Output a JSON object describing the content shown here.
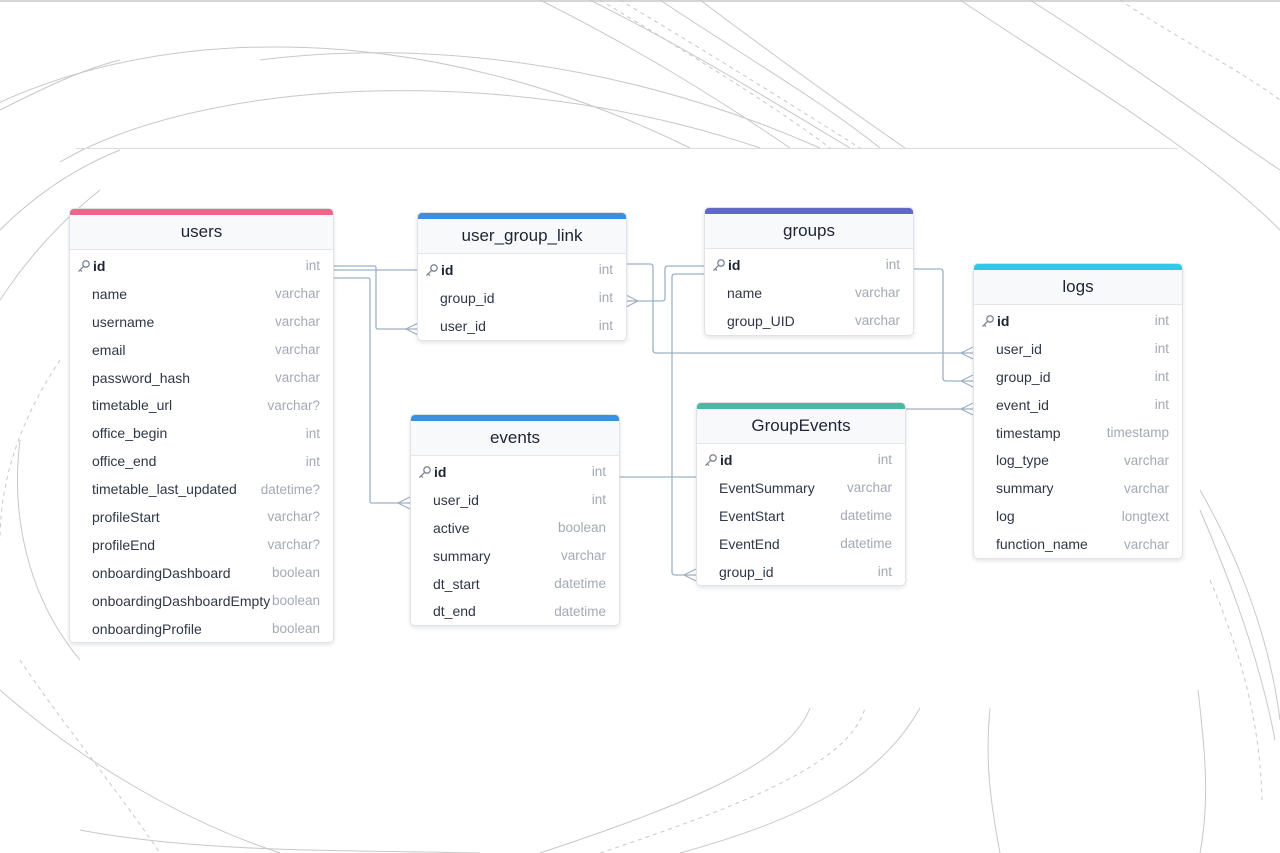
{
  "diagram": {
    "tables": [
      {
        "id": "users",
        "name": "users",
        "accent": "#f0648a",
        "columns": [
          {
            "name": "id",
            "type": "int",
            "pk": true
          },
          {
            "name": "name",
            "type": "varchar"
          },
          {
            "name": "username",
            "type": "varchar"
          },
          {
            "name": "email",
            "type": "varchar"
          },
          {
            "name": "password_hash",
            "type": "varchar"
          },
          {
            "name": "timetable_url",
            "type": "varchar?"
          },
          {
            "name": "office_begin",
            "type": "int"
          },
          {
            "name": "office_end",
            "type": "int"
          },
          {
            "name": "timetable_last_updated",
            "type": "datetime?"
          },
          {
            "name": "profileStart",
            "type": "varchar?"
          },
          {
            "name": "profileEnd",
            "type": "varchar?"
          },
          {
            "name": "onboardingDashboard",
            "type": "boolean"
          },
          {
            "name": "onboardingDashboardEmpty",
            "type": "boolean"
          },
          {
            "name": "onboardingProfile",
            "type": "boolean"
          }
        ]
      },
      {
        "id": "user_group_link",
        "name": "user_group_link",
        "accent": "#3a8fde",
        "columns": [
          {
            "name": "id",
            "type": "int",
            "pk": true
          },
          {
            "name": "group_id",
            "type": "int"
          },
          {
            "name": "user_id",
            "type": "int"
          }
        ]
      },
      {
        "id": "groups",
        "name": "groups",
        "accent": "#6168c9",
        "columns": [
          {
            "name": "id",
            "type": "int",
            "pk": true
          },
          {
            "name": "name",
            "type": "varchar"
          },
          {
            "name": "group_UID",
            "type": "varchar"
          }
        ]
      },
      {
        "id": "logs",
        "name": "logs",
        "accent": "#2ec9e3",
        "columns": [
          {
            "name": "id",
            "type": "int",
            "pk": true
          },
          {
            "name": "user_id",
            "type": "int"
          },
          {
            "name": "group_id",
            "type": "int"
          },
          {
            "name": "event_id",
            "type": "int"
          },
          {
            "name": "timestamp",
            "type": "timestamp"
          },
          {
            "name": "log_type",
            "type": "varchar"
          },
          {
            "name": "summary",
            "type": "varchar"
          },
          {
            "name": "log",
            "type": "longtext"
          },
          {
            "name": "function_name",
            "type": "varchar"
          }
        ]
      },
      {
        "id": "events",
        "name": "events",
        "accent": "#3a8fde",
        "columns": [
          {
            "name": "id",
            "type": "int",
            "pk": true
          },
          {
            "name": "user_id",
            "type": "int"
          },
          {
            "name": "active",
            "type": "boolean"
          },
          {
            "name": "summary",
            "type": "varchar"
          },
          {
            "name": "dt_start",
            "type": "datetime"
          },
          {
            "name": "dt_end",
            "type": "datetime"
          }
        ]
      },
      {
        "id": "GroupEvents",
        "name": "GroupEvents",
        "accent": "#4bb8a3",
        "columns": [
          {
            "name": "id",
            "type": "int",
            "pk": true
          },
          {
            "name": "EventSummary",
            "type": "varchar"
          },
          {
            "name": "EventStart",
            "type": "datetime"
          },
          {
            "name": "EventEnd",
            "type": "datetime"
          },
          {
            "name": "group_id",
            "type": "int"
          }
        ]
      }
    ],
    "relations": [
      {
        "from": "users.id",
        "to": "user_group_link.user_id",
        "cardinality": "one-to-many"
      },
      {
        "from": "users.id",
        "to": "events.user_id",
        "cardinality": "one-to-many"
      },
      {
        "from": "users.id",
        "to": "logs.user_id",
        "cardinality": "one-to-many"
      },
      {
        "from": "groups.id",
        "to": "user_group_link.group_id",
        "cardinality": "one-to-many"
      },
      {
        "from": "groups.id",
        "to": "logs.group_id",
        "cardinality": "one-to-many"
      },
      {
        "from": "groups.id",
        "to": "GroupEvents.group_id",
        "cardinality": "one-to-many"
      },
      {
        "from": "events.id",
        "to": "GroupEvents.id",
        "cardinality": "one-to-one"
      },
      {
        "from": "GroupEvents.id",
        "to": "logs.event_id",
        "cardinality": "one-to-many"
      }
    ],
    "colors": {
      "relation_line": "#9eb0c4",
      "background_curves": "#c8c8c8"
    }
  }
}
